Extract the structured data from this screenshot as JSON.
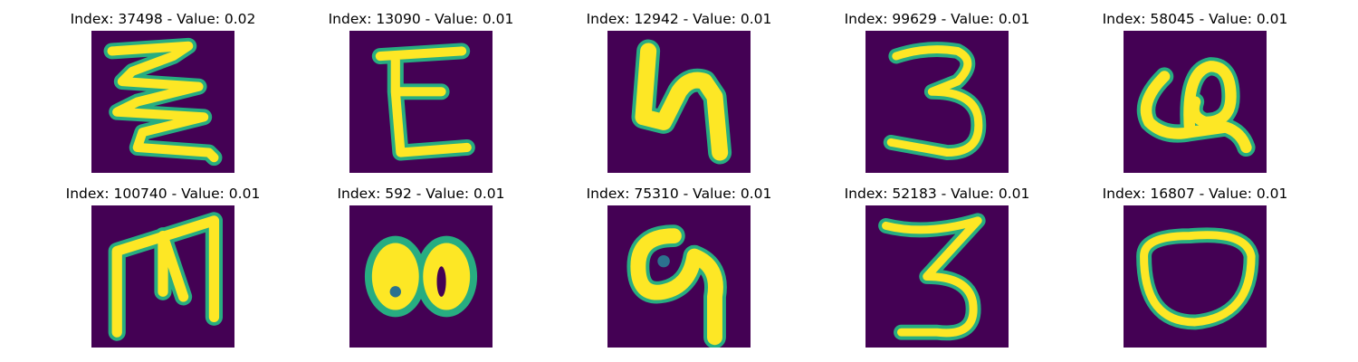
{
  "chart_data": {
    "type": "image_grid",
    "rows": 2,
    "columns": 5,
    "colormap": "viridis",
    "background_color": "#440154",
    "stroke_color": "#fde725",
    "edge_color": "#27ad81",
    "panels": [
      {
        "title": "Index: 37498 - Value: 0.02",
        "index": 37498,
        "value": 0.02,
        "glyph": "zigzag-icon"
      },
      {
        "title": "Index: 13090 - Value: 0.01",
        "index": 13090,
        "value": 0.01,
        "glyph": "e-letter-icon"
      },
      {
        "title": "Index: 12942 - Value: 0.01",
        "index": 12942,
        "value": 0.01,
        "glyph": "four-like-icon"
      },
      {
        "title": "Index: 99629 - Value: 0.01",
        "index": 99629,
        "value": 0.01,
        "glyph": "three-digit-icon"
      },
      {
        "title": "Index: 58045 - Value: 0.01",
        "index": 58045,
        "value": 0.01,
        "glyph": "loop-glyph-icon"
      },
      {
        "title": "Index: 100740 - Value: 0.01",
        "index": 100740,
        "value": 0.01,
        "glyph": "m-letter-icon"
      },
      {
        "title": "Index: 592 - Value: 0.01",
        "index": 592,
        "value": 0.01,
        "glyph": "double-o-icon"
      },
      {
        "title": "Index: 75310 - Value: 0.01",
        "index": 75310,
        "value": 0.01,
        "glyph": "nine-like-icon"
      },
      {
        "title": "Index: 52183 - Value: 0.01",
        "index": 52183,
        "value": 0.01,
        "glyph": "three-digit-icon"
      },
      {
        "title": "Index: 16807 - Value: 0.01",
        "index": 16807,
        "value": 0.01,
        "glyph": "oval-icon"
      }
    ]
  }
}
